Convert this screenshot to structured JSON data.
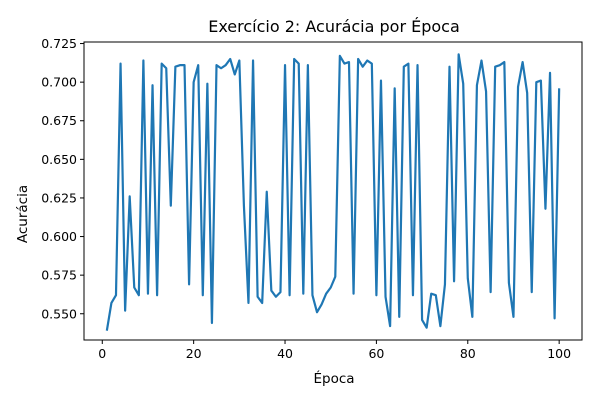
{
  "chart_data": {
    "type": "line",
    "title": "Exercício 2: Acurácia por Época",
    "xlabel": "Época",
    "ylabel": "Acurácia",
    "xlim": [
      -4,
      105
    ],
    "ylim": [
      0.533,
      0.726
    ],
    "xticks": [
      0,
      20,
      40,
      60,
      80,
      100
    ],
    "yticks": [
      0.55,
      0.575,
      0.6,
      0.625,
      0.65,
      0.675,
      0.7,
      0.725
    ],
    "grid": false,
    "color": "#1f77b4",
    "series": [
      {
        "x": [
          1,
          2,
          3,
          4,
          5,
          6,
          7,
          8,
          9,
          10,
          11,
          12,
          13,
          14,
          15,
          16,
          17,
          18,
          19,
          20,
          21,
          22,
          23,
          24,
          25,
          26,
          27,
          28,
          29,
          30,
          31,
          32,
          33,
          34,
          35,
          36,
          37,
          38,
          39,
          40,
          41,
          42,
          43,
          44,
          45,
          46,
          47,
          48,
          49,
          50,
          51,
          52,
          53,
          54,
          55,
          56,
          57,
          58,
          59,
          60,
          61,
          62,
          63,
          64,
          65,
          66,
          67,
          68,
          69,
          70,
          71,
          72,
          73,
          74,
          75,
          76,
          77,
          78,
          79,
          80,
          81,
          82,
          83,
          84,
          85,
          86,
          87,
          88,
          89,
          90,
          91,
          92,
          93,
          94,
          95,
          96,
          97,
          98,
          99,
          100
        ],
        "values": [
          0.539,
          0.557,
          0.562,
          0.712,
          0.552,
          0.626,
          0.567,
          0.562,
          0.714,
          0.563,
          0.698,
          0.562,
          0.712,
          0.709,
          0.62,
          0.71,
          0.711,
          0.711,
          0.569,
          0.7,
          0.711,
          0.562,
          0.699,
          0.544,
          0.711,
          0.709,
          0.711,
          0.715,
          0.705,
          0.714,
          0.62,
          0.557,
          0.714,
          0.561,
          0.557,
          0.629,
          0.565,
          0.561,
          0.564,
          0.711,
          0.562,
          0.715,
          0.712,
          0.563,
          0.711,
          0.562,
          0.551,
          0.556,
          0.563,
          0.567,
          0.574,
          0.717,
          0.712,
          0.713,
          0.563,
          0.715,
          0.71,
          0.714,
          0.712,
          0.562,
          0.701,
          0.561,
          0.542,
          0.696,
          0.548,
          0.71,
          0.712,
          0.562,
          0.711,
          0.546,
          0.541,
          0.563,
          0.562,
          0.542,
          0.569,
          0.71,
          0.571,
          0.718,
          0.699,
          0.573,
          0.548,
          0.698,
          0.714,
          0.694,
          0.564,
          0.71,
          0.711,
          0.713,
          0.57,
          0.548,
          0.697,
          0.713,
          0.693,
          0.564,
          0.7,
          0.701,
          0.618,
          0.706,
          0.547,
          0.696
        ]
      }
    ]
  }
}
